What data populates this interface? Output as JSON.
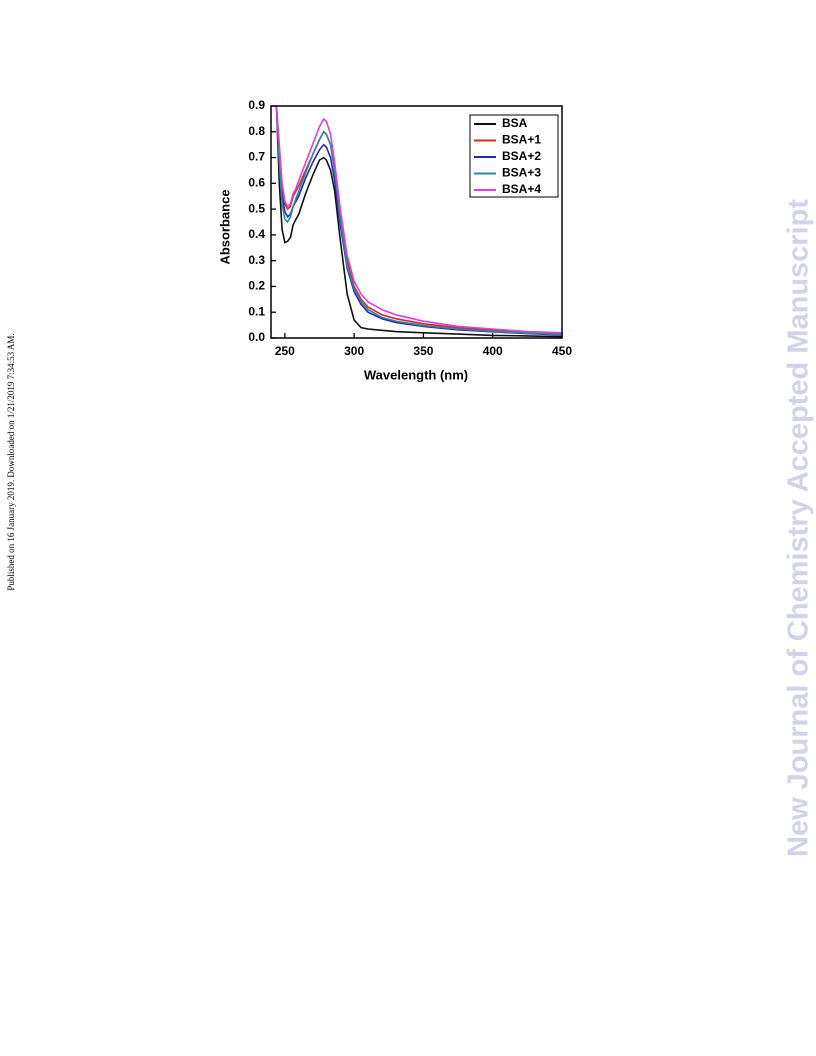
{
  "chart_data": {
    "type": "line",
    "xlabel": "Wavelength (nm)",
    "ylabel": "Absorbance",
    "x": [
      244,
      246,
      248,
      250,
      252,
      254,
      256,
      258,
      260,
      265,
      270,
      275,
      278,
      280,
      283,
      286,
      290,
      295,
      300,
      305,
      310,
      320,
      330,
      350,
      375,
      400,
      425,
      450
    ],
    "series": [
      {
        "name": "BSA",
        "color": "#111111",
        "values": [
          0.9,
          0.6,
          0.42,
          0.37,
          0.375,
          0.39,
          0.44,
          0.46,
          0.48,
          0.56,
          0.63,
          0.69,
          0.7,
          0.69,
          0.65,
          0.57,
          0.38,
          0.17,
          0.07,
          0.04,
          0.035,
          0.03,
          0.025,
          0.02,
          0.015,
          0.01,
          0.008,
          0.005
        ]
      },
      {
        "name": "BSA+1",
        "color": "#e02424",
        "values": [
          0.9,
          0.72,
          0.58,
          0.52,
          0.5,
          0.51,
          0.55,
          0.57,
          0.59,
          0.65,
          0.71,
          0.77,
          0.8,
          0.79,
          0.75,
          0.65,
          0.47,
          0.3,
          0.2,
          0.15,
          0.12,
          0.09,
          0.075,
          0.055,
          0.04,
          0.03,
          0.022,
          0.016
        ]
      },
      {
        "name": "BSA+2",
        "color": "#2626b8",
        "values": [
          0.9,
          0.7,
          0.55,
          0.49,
          0.47,
          0.48,
          0.51,
          0.53,
          0.55,
          0.62,
          0.68,
          0.73,
          0.75,
          0.74,
          0.7,
          0.61,
          0.44,
          0.27,
          0.18,
          0.13,
          0.1,
          0.075,
          0.06,
          0.045,
          0.032,
          0.024,
          0.017,
          0.012
        ]
      },
      {
        "name": "BSA+3",
        "color": "#2a8a98",
        "values": [
          0.9,
          0.68,
          0.52,
          0.46,
          0.45,
          0.47,
          0.51,
          0.54,
          0.57,
          0.64,
          0.71,
          0.77,
          0.8,
          0.79,
          0.75,
          0.65,
          0.46,
          0.28,
          0.19,
          0.14,
          0.11,
          0.08,
          0.065,
          0.048,
          0.035,
          0.026,
          0.019,
          0.014
        ]
      },
      {
        "name": "BSA+4",
        "color": "#e040e0",
        "values": [
          0.9,
          0.75,
          0.6,
          0.53,
          0.51,
          0.52,
          0.56,
          0.58,
          0.61,
          0.68,
          0.75,
          0.82,
          0.85,
          0.84,
          0.79,
          0.68,
          0.5,
          0.32,
          0.22,
          0.17,
          0.14,
          0.11,
          0.09,
          0.065,
          0.045,
          0.035,
          0.025,
          0.02
        ]
      }
    ],
    "xlim": [
      240,
      450
    ],
    "ylim": [
      0,
      0.9
    ],
    "xticks": [
      250,
      300,
      350,
      400,
      450
    ],
    "yticks": [
      {
        "value": 0,
        "label": "0.0"
      },
      0.1,
      0.2,
      0.3,
      0.4,
      0.5,
      0.6,
      0.7,
      0.8,
      0.9
    ],
    "legend": "upper right"
  },
  "side_note": "Published on 16 January 2019. Downloaded on 1/21/2019 7:34:53 AM.",
  "watermark": "New Journal of Chemistry Accepted Manuscript"
}
